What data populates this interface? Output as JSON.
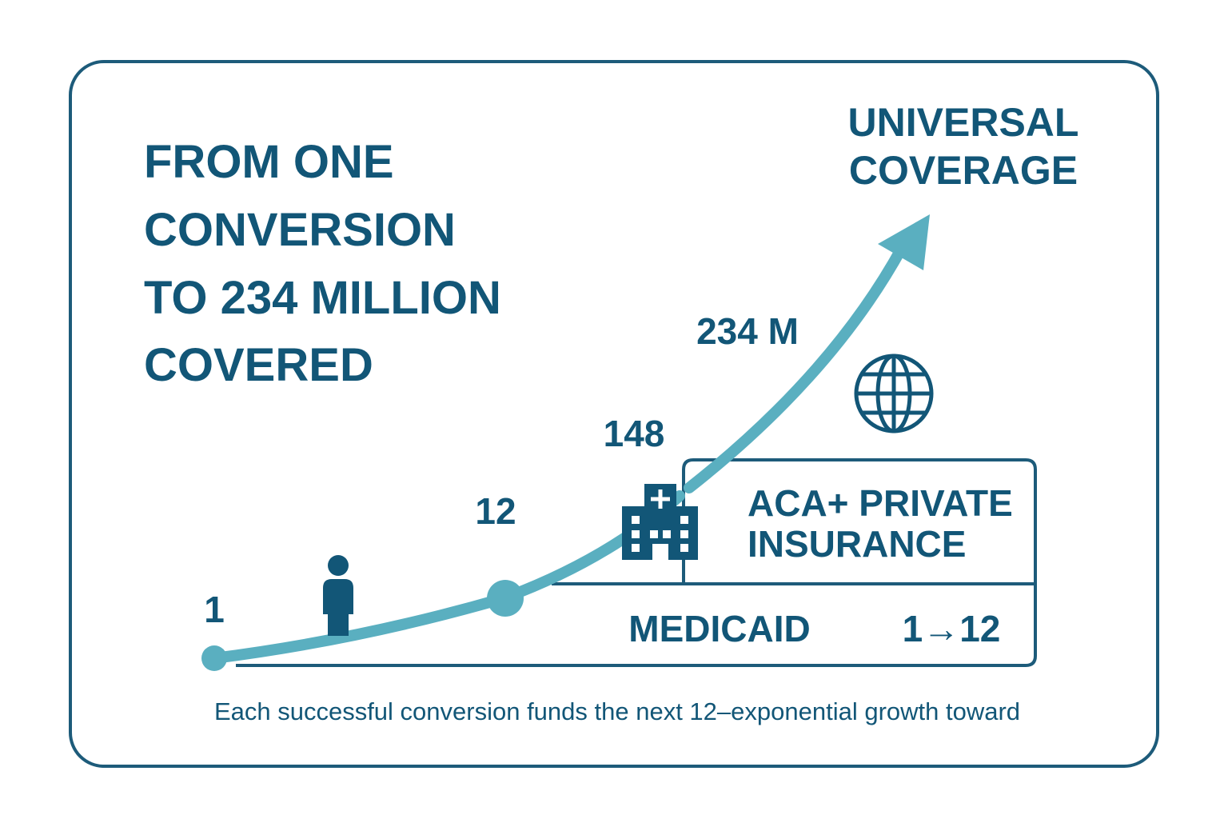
{
  "title": {
    "lines": [
      "FROM ONE",
      "CONVERSION",
      "TO 234 MILLION",
      "COVERED"
    ]
  },
  "goal": {
    "lines": [
      "UNIVERSAL",
      "COVERAGE"
    ]
  },
  "milestones": [
    "1",
    "12",
    "148",
    "234 M"
  ],
  "tiers": {
    "upper": {
      "lines": [
        "ACA+ PRIVATE",
        "INSURANCE"
      ]
    },
    "lower": {
      "label": "MEDICAID",
      "ratio": "1→12"
    }
  },
  "footer": "Each successful conversion funds the next 12–exponential growth toward"
}
